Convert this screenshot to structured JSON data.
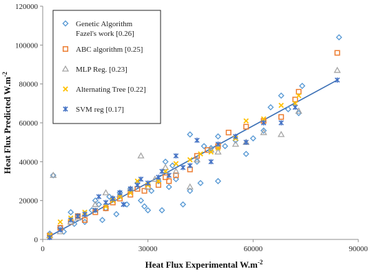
{
  "chart_data": {
    "type": "scatter",
    "xlabel": "Heat Flux Experimental W.m",
    "xlabel_sup": "-2",
    "ylabel": "Heat Flux Predicted W.m",
    "ylabel_sup": "-2",
    "xlim": [
      0,
      90000
    ],
    "ylim": [
      0,
      120000
    ],
    "x_ticks": [
      "0",
      "30000",
      "60000",
      "90000"
    ],
    "y_ticks": [
      "0",
      "20000",
      "40000",
      "60000",
      "80000",
      "100000",
      "120000"
    ],
    "grid": false,
    "legend_position": "top-left",
    "trendline": {
      "x": [
        1500,
        84000
      ],
      "y": [
        1200,
        82000
      ],
      "color": "#3a6fb5"
    },
    "series": [
      {
        "name": "Genetic Algorithm Fazel's work [0.26]",
        "legend_lines": [
          "Genetic Algorithm",
          "Fazel's work [0.26]"
        ],
        "marker": "diamond",
        "color": "#5b9bd5",
        "x": [
          2000,
          3000,
          5000,
          6000,
          8000,
          9000,
          10000,
          12000,
          14000,
          15000,
          16000,
          17000,
          18000,
          19000,
          20000,
          21000,
          22000,
          24000,
          25000,
          27000,
          28000,
          29000,
          30000,
          31000,
          33000,
          34000,
          35000,
          36000,
          37000,
          38000,
          40000,
          42000,
          42000,
          44000,
          45000,
          46000,
          48000,
          50000,
          50000,
          52000,
          55000,
          58000,
          60000,
          63000,
          65000,
          68000,
          70000,
          73000,
          74000,
          84500
        ],
        "y": [
          3000,
          33000,
          6000,
          4000,
          14000,
          8000,
          12000,
          9000,
          15000,
          20000,
          18000,
          10000,
          16000,
          22000,
          21000,
          13000,
          24000,
          18000,
          26000,
          29000,
          20000,
          17000,
          15000,
          25000,
          30000,
          15000,
          40000,
          27000,
          38000,
          31000,
          18000,
          54000,
          25000,
          40000,
          29000,
          48000,
          47000,
          30000,
          53000,
          48000,
          51000,
          44000,
          52000,
          56000,
          68000,
          74000,
          67000,
          65000,
          79000,
          104000
        ]
      },
      {
        "name": "ABC algorithm [0.25]",
        "legend_lines": [
          "ABC algorithm [0.25]"
        ],
        "marker": "square",
        "color": "#ed7d31",
        "x": [
          2000,
          5000,
          8000,
          10000,
          12000,
          15000,
          18000,
          20000,
          22000,
          25000,
          27000,
          29000,
          30000,
          33000,
          35000,
          36000,
          38000,
          42000,
          44000,
          47000,
          50000,
          53000,
          58000,
          63000,
          68000,
          72000,
          73000,
          84000
        ],
        "y": [
          2000,
          6000,
          9000,
          12000,
          10000,
          14000,
          16000,
          19000,
          21000,
          23000,
          26000,
          25000,
          27000,
          28000,
          32000,
          30000,
          33000,
          36000,
          43000,
          46000,
          48000,
          55000,
          58000,
          61000,
          63000,
          72000,
          76000,
          96000
        ]
      },
      {
        "name": "MLP Reg. [0.23]",
        "legend_lines": [
          "MLP Reg. [0.23]"
        ],
        "marker": "triangle",
        "color": "#a5a5a5",
        "x": [
          2000,
          3000,
          5000,
          8000,
          10000,
          12000,
          15000,
          18000,
          20000,
          22000,
          25000,
          28000,
          30000,
          32000,
          35000,
          38000,
          42000,
          44000,
          48000,
          50000,
          55000,
          58000,
          63000,
          68000,
          73000,
          84000
        ],
        "y": [
          2000,
          33000,
          4000,
          9000,
          11000,
          13000,
          18000,
          24000,
          21000,
          23000,
          26000,
          43000,
          27000,
          31000,
          37000,
          35000,
          27000,
          41000,
          46000,
          45000,
          49000,
          50000,
          55000,
          54000,
          66000,
          87000
        ]
      },
      {
        "name": "Alternating Tree [0.22]",
        "legend_lines": [
          "Alternating Tree [0.22]"
        ],
        "marker": "x",
        "color": "#ffc000",
        "x": [
          2000,
          5000,
          8000,
          10000,
          12000,
          15000,
          18000,
          20000,
          22000,
          25000,
          27000,
          30000,
          33000,
          35000,
          38000,
          42000,
          45000,
          48000,
          50000,
          55000,
          58000,
          63000,
          68000,
          72000,
          73000
        ],
        "y": [
          2000,
          9000,
          11000,
          12000,
          14000,
          15000,
          17000,
          20000,
          22000,
          24000,
          30000,
          28000,
          30000,
          35000,
          39000,
          41000,
          44000,
          45000,
          47000,
          52000,
          61000,
          62000,
          69000,
          70000,
          74000
        ]
      },
      {
        "name": "SVM reg [0.17]",
        "legend_lines": [
          "SVM reg [0.17]"
        ],
        "marker": "asterisk",
        "color": "#4472c4",
        "x": [
          2000,
          5000,
          8000,
          10000,
          12000,
          15000,
          16000,
          18000,
          20000,
          22000,
          23000,
          25000,
          27000,
          28000,
          30000,
          33000,
          34000,
          36000,
          38000,
          40000,
          42000,
          44000,
          48000,
          50000,
          55000,
          58000,
          63000,
          68000,
          72000,
          84000
        ],
        "y": [
          1000,
          5000,
          10000,
          12000,
          13000,
          15000,
          22000,
          19000,
          21000,
          24000,
          18000,
          26000,
          28000,
          31000,
          29000,
          32000,
          35000,
          33000,
          43000,
          37000,
          38000,
          51000,
          40000,
          49000,
          53000,
          50000,
          60000,
          60000,
          68000,
          82000
        ]
      }
    ]
  }
}
